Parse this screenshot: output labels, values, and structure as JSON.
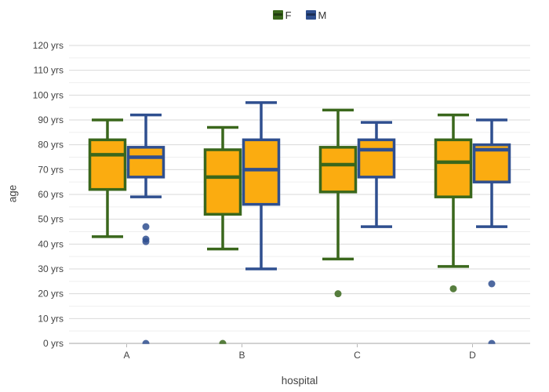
{
  "chart_data": {
    "type": "box",
    "title": "",
    "xlabel": "hospital",
    "ylabel": "age",
    "categories": [
      "A",
      "B",
      "C",
      "D"
    ],
    "y_unit": "yrs",
    "ylim": [
      0,
      120
    ],
    "ytick_step": 10,
    "ytick_minor_step": 5,
    "grid": true,
    "legend_position": "top-center",
    "series": [
      {
        "name": "F",
        "line_color": "#3A671C",
        "fill_color": "#FBAC10",
        "boxes": [
          {
            "category": "A",
            "low": 43,
            "q1": 62,
            "median": 76,
            "q3": 82,
            "high": 90,
            "outliers": []
          },
          {
            "category": "B",
            "low": 38,
            "q1": 52,
            "median": 67,
            "q3": 78,
            "high": 87,
            "outliers": [
              0
            ]
          },
          {
            "category": "C",
            "low": 34,
            "q1": 61,
            "median": 72,
            "q3": 79,
            "high": 94,
            "outliers": [
              20
            ]
          },
          {
            "category": "D",
            "low": 31,
            "q1": 59,
            "median": 73,
            "q3": 82,
            "high": 92,
            "outliers": [
              22
            ]
          }
        ]
      },
      {
        "name": "M",
        "line_color": "#2F4F8F",
        "fill_color": "#FBAC10",
        "boxes": [
          {
            "category": "A",
            "low": 59,
            "q1": 67,
            "median": 75,
            "q3": 79,
            "high": 92,
            "outliers": [
              47,
              42,
              41,
              0
            ]
          },
          {
            "category": "B",
            "low": 30,
            "q1": 56,
            "median": 70,
            "q3": 82,
            "high": 97,
            "outliers": []
          },
          {
            "category": "C",
            "low": 47,
            "q1": 67,
            "median": 78,
            "q3": 82,
            "high": 89,
            "outliers": []
          },
          {
            "category": "D",
            "low": 47,
            "q1": 65,
            "median": 78,
            "q3": 80,
            "high": 90,
            "outliers": [
              24,
              0
            ]
          }
        ]
      }
    ]
  },
  "legend": {
    "items": [
      {
        "label": "F"
      },
      {
        "label": "M"
      }
    ]
  },
  "axes": {
    "x_title": "hospital",
    "y_title": "age"
  },
  "colors": {
    "grid_major": "#DADADA",
    "grid_minor": "#EFEFEF",
    "axis_line": "#C4C4C4",
    "tick_mark": "#B9B9B9",
    "tick_text": "#444444"
  }
}
